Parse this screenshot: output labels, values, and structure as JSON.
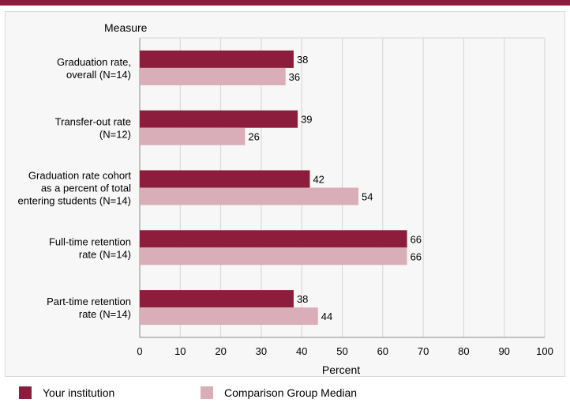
{
  "chart_data": {
    "type": "bar",
    "orientation": "horizontal",
    "ytitle": "Measure",
    "xlabel": "Percent",
    "xlim": [
      0,
      100
    ],
    "xticks": [
      0,
      10,
      20,
      30,
      40,
      50,
      60,
      70,
      80,
      90,
      100
    ],
    "grid": true,
    "legend_position": "bottom",
    "categories": [
      [
        "Graduation rate,",
        "overall (N=14)"
      ],
      [
        "Transfer-out rate",
        "(N=12)"
      ],
      [
        "Graduation rate cohort",
        "as a percent of total",
        "entering students (N=14)"
      ],
      [
        "Full-time retention",
        "rate (N=14)"
      ],
      [
        "Part-time retention",
        "rate (N=14)"
      ]
    ],
    "series": [
      {
        "name": "Your institution",
        "color": "#8c1d3c",
        "values": [
          38,
          39,
          42,
          66,
          38
        ]
      },
      {
        "name": "Comparison Group Median",
        "color": "#d9aeb8",
        "values": [
          36,
          26,
          54,
          66,
          44
        ]
      }
    ]
  }
}
